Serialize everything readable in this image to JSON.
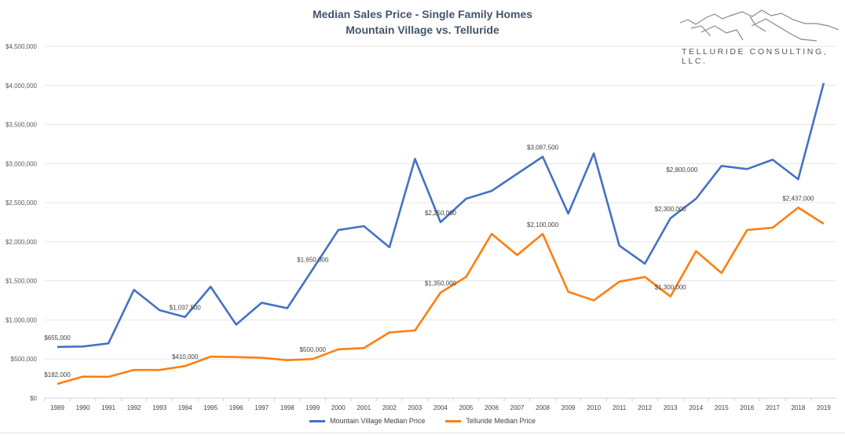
{
  "chart_data": {
    "type": "line",
    "title": "Median Sales Price - Single Family Homes",
    "subtitle": "Mountain Village vs. Telluride",
    "xlabel": "",
    "ylabel": "",
    "ylim": [
      0,
      4500000
    ],
    "yticks": [
      0,
      500000,
      1000000,
      1500000,
      2000000,
      2500000,
      3000000,
      3500000,
      4000000,
      4500000
    ],
    "ytick_labels": [
      "$0",
      "$500,000",
      "$1,000,000",
      "$1,500,000",
      "$2,000,000",
      "$2,500,000",
      "$3,000,000",
      "$3,500,000",
      "$4,000,000",
      "$4,500,000"
    ],
    "grid": true,
    "legend": "bottom",
    "categories": [
      "1989",
      "1990",
      "1991",
      "1992",
      "1993",
      "1994",
      "1995",
      "1996",
      "1997",
      "1998",
      "1999",
      "2000",
      "2001",
      "2002",
      "2003",
      "2004",
      "2005",
      "2006",
      "2007",
      "2008",
      "2009",
      "2010",
      "2011",
      "2012",
      "2013",
      "2014",
      "2015",
      "2016",
      "2017",
      "2018",
      "2019"
    ],
    "series": [
      {
        "name": "Mountain Village Median Price",
        "color": "#4472c4",
        "values": [
          655000,
          660000,
          700000,
          1385000,
          1125000,
          1037500,
          1425000,
          940000,
          1220000,
          1150000,
          1650000,
          2150000,
          2200000,
          1930000,
          3060000,
          2250000,
          2550000,
          2650000,
          2870000,
          3087500,
          2360000,
          3130000,
          1950000,
          1720000,
          2300000,
          2550000,
          2970000,
          2930000,
          3050000,
          2800000,
          4030000
        ],
        "data_labels": [
          {
            "index": 0,
            "text": "$655,000"
          },
          {
            "index": 5,
            "text": "$1,037,500"
          },
          {
            "index": 10,
            "text": "$1,650,000"
          },
          {
            "index": 15,
            "text": "$2,250,000"
          },
          {
            "index": 19,
            "text": "$3,087,500"
          },
          {
            "index": 24,
            "text": "$2,300,000"
          },
          {
            "index": 29,
            "text": "$2,800,000"
          }
        ]
      },
      {
        "name": "Telluride Median Price",
        "color": "#ff7f0e",
        "values": [
          182000,
          275000,
          272000,
          360000,
          360000,
          410000,
          530000,
          525000,
          515000,
          485000,
          500000,
          625000,
          640000,
          840000,
          865000,
          1350000,
          1550000,
          2100000,
          1830000,
          2100000,
          1360000,
          1250000,
          1490000,
          1550000,
          1300000,
          1880000,
          1600000,
          2150000,
          2180000,
          2437000,
          2230000
        ],
        "data_labels": [
          {
            "index": 0,
            "text": "$182,000"
          },
          {
            "index": 5,
            "text": "$410,000"
          },
          {
            "index": 10,
            "text": "$500,000"
          },
          {
            "index": 15,
            "text": "$1,350,000"
          },
          {
            "index": 19,
            "text": "$2,100,000"
          },
          {
            "index": 24,
            "text": "$1,300,000"
          },
          {
            "index": 29,
            "text": "$2,437,000"
          }
        ]
      }
    ]
  },
  "logo": {
    "text": "TELLURIDE CONSULTING, LLC."
  }
}
